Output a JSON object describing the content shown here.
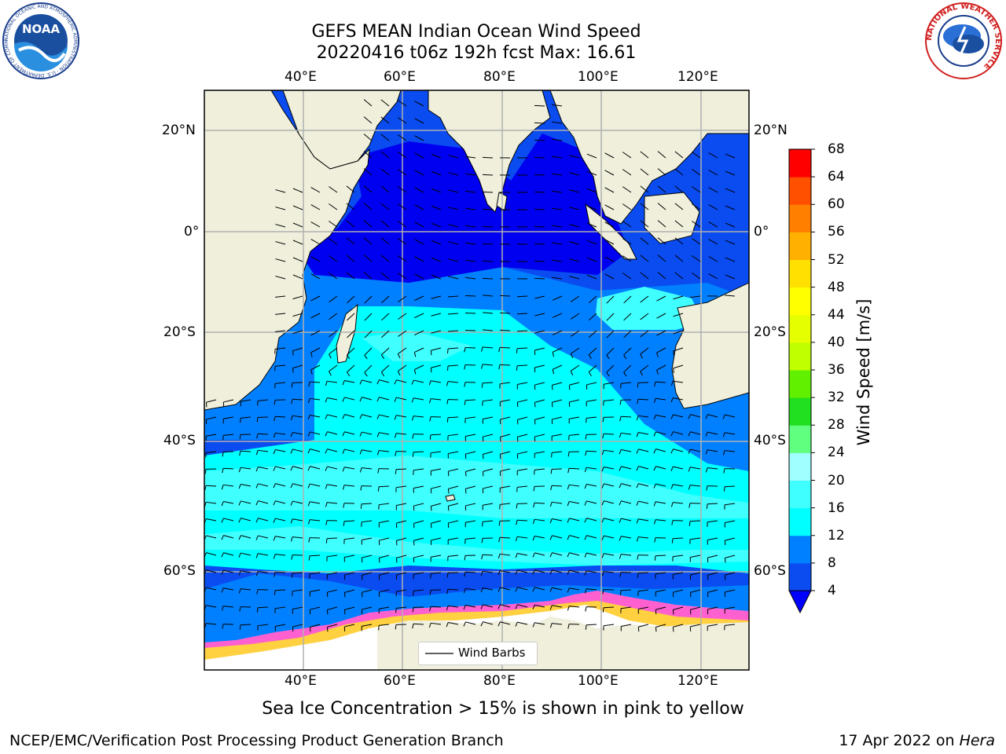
{
  "header": {
    "title_line1": "GEFS MEAN Indian Ocean Wind Speed",
    "title_line2": "20220416 t06z 192h fcst   Max: 16.61",
    "noaa_logo_text": "NOAA",
    "noaa_ring_text": "NATIONAL OCEANIC AND ATMOSPHERIC ADMINISTRATION · U.S. DEPARTMENT OF COMMERCE",
    "nws_ring_text": "NATIONAL WEATHER SERVICE"
  },
  "map": {
    "projection": "cylindrical",
    "lon_range": [
      20,
      130
    ],
    "lat_range": [
      -77,
      27
    ],
    "lon_ticks": [
      "40°E",
      "60°E",
      "80°E",
      "100°E",
      "120°E"
    ],
    "lat_ticks": [
      "20°N",
      "0°",
      "20°S",
      "40°S",
      "60°S"
    ],
    "grid": true,
    "land_color": "#efefdc",
    "ocean_base_color": "#0a4cf0",
    "sea_ice_color": "#ffffff"
  },
  "legend": {
    "label": "Wind Barbs",
    "placement": "bottom-center"
  },
  "colorbar": {
    "label": "Wind Speed [m/s]",
    "ticks": [
      "68",
      "64",
      "60",
      "56",
      "52",
      "48",
      "44",
      "40",
      "36",
      "32",
      "28",
      "24",
      "20",
      "16",
      "12",
      "8",
      "4"
    ],
    "levels": [
      4,
      8,
      12,
      16,
      20,
      24,
      28,
      32,
      36,
      40,
      44,
      48,
      52,
      56,
      60,
      64,
      68
    ],
    "colors": [
      "#0a4cf0",
      "#0080ff",
      "#00ffff",
      "#40ffff",
      "#a0ffff",
      "#60ff80",
      "#20e020",
      "#60f000",
      "#c0ff00",
      "#e6ff00",
      "#ffff00",
      "#ffe000",
      "#ffb000",
      "#ff8000",
      "#ff5000",
      "#ff2000",
      "#ff0000"
    ],
    "extend_min_color": "#0000ff"
  },
  "caption": "Sea Ice Concentration > 15% is shown in pink to yellow",
  "footer": {
    "left": "NCEP/EMC/Verification Post Processing Product Generation Branch",
    "right_date": "17 Apr 2022 on",
    "right_host": "Hera"
  }
}
